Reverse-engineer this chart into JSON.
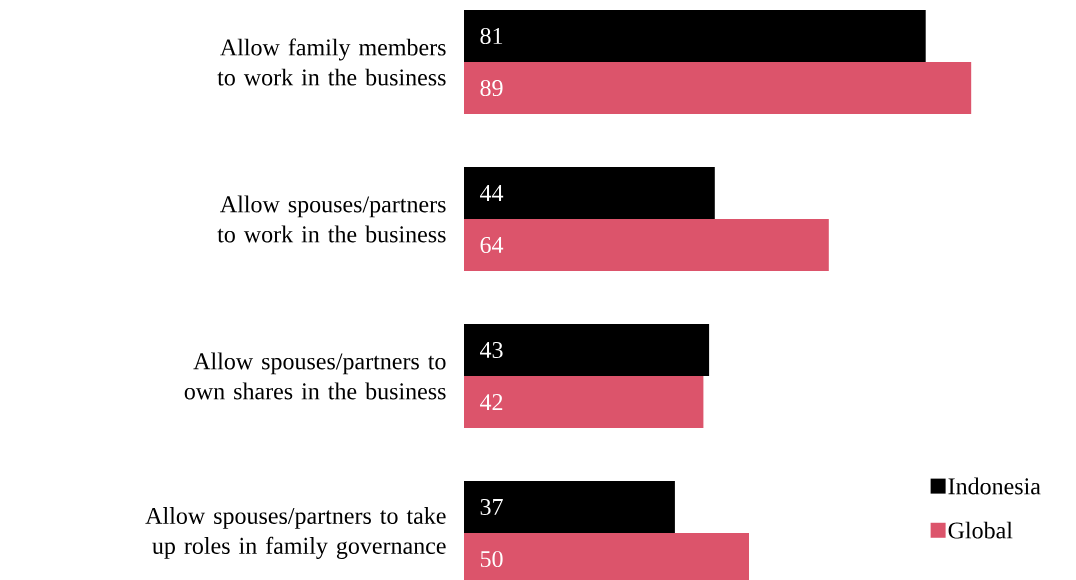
{
  "chart_data": {
    "type": "bar",
    "orientation": "horizontal",
    "categories": [
      "Allow family members to work in the business",
      "Allow spouses/partners to work in the business",
      "Allow spouses/partners to own shares in the business",
      "Allow spouses/partners to take up roles in family governance"
    ],
    "series": [
      {
        "name": "Indonesia",
        "color": "#000000",
        "values": [
          81,
          44,
          43,
          37
        ]
      },
      {
        "name": "Global",
        "color": "#dc546b",
        "values": [
          89,
          64,
          42,
          50
        ]
      }
    ],
    "data_labels": true,
    "legend": "bottom right"
  }
}
